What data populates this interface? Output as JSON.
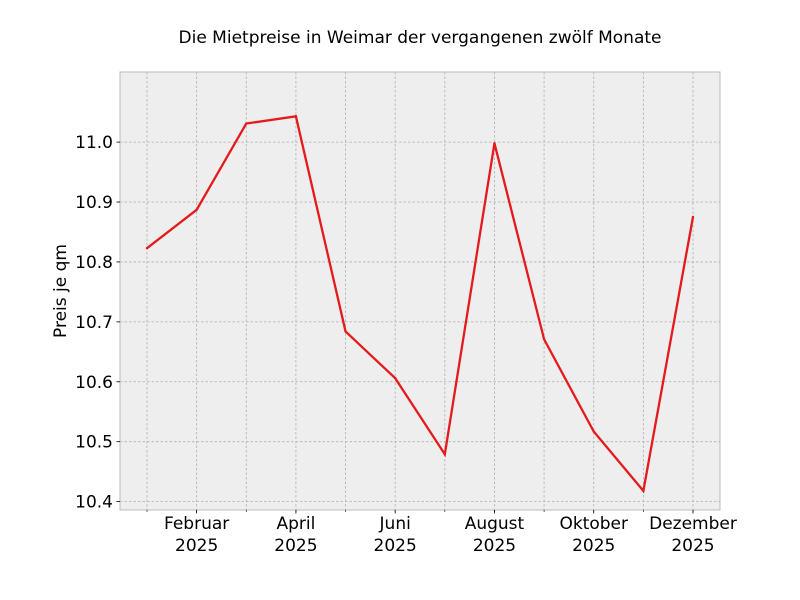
{
  "chart_data": {
    "type": "line",
    "title": "Die Mietpreise in Weimar der vergangenen zwölf Monate",
    "xlabel": "",
    "ylabel": "Preis je qm",
    "x": [
      "2025-01",
      "2025-02",
      "2025-03",
      "2025-04",
      "2025-05",
      "2025-06",
      "2025-07",
      "2025-08",
      "2025-09",
      "2025-10",
      "2025-11",
      "2025-12"
    ],
    "x_tick_labels": [
      {
        "x": "2025-02",
        "month": "Februar",
        "year": "2025"
      },
      {
        "x": "2025-04",
        "month": "April",
        "year": "2025"
      },
      {
        "x": "2025-06",
        "month": "Juni",
        "year": "2025"
      },
      {
        "x": "2025-08",
        "month": "August",
        "year": "2025"
      },
      {
        "x": "2025-10",
        "month": "Oktober",
        "year": "2025"
      },
      {
        "x": "2025-12",
        "month": "Dezember",
        "year": "2025"
      }
    ],
    "series": [
      {
        "color": "#e41a1c",
        "values": [
          10.823,
          10.887,
          11.031,
          11.043,
          10.684,
          10.606,
          10.479,
          10.998,
          10.671,
          10.517,
          10.418,
          10.875
        ]
      }
    ],
    "y_ticks": [
      "10.4",
      "10.5",
      "10.6",
      "10.7",
      "10.8",
      "10.9",
      "11.0"
    ],
    "ylim": [
      10.386,
      11.117
    ],
    "grid": true,
    "background_color": "#eeeeee"
  }
}
